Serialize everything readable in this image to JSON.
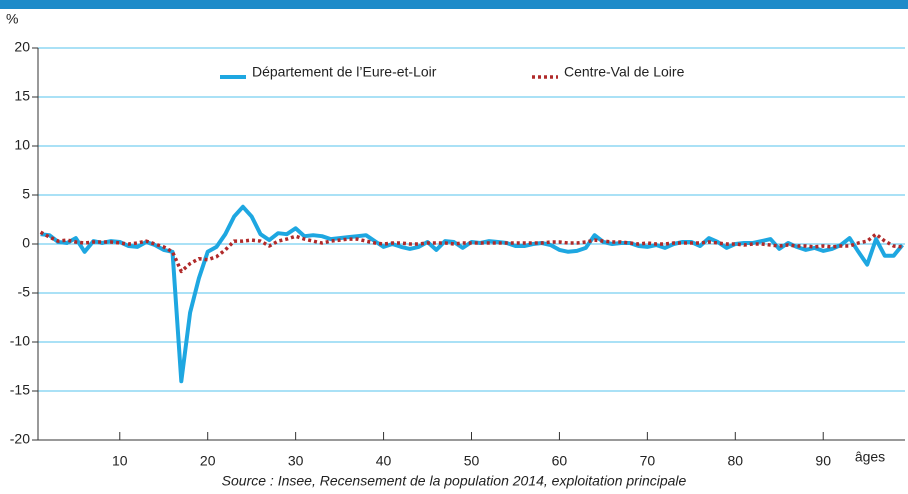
{
  "chart_data": {
    "type": "line",
    "y_unit": "%",
    "x_label": "âges",
    "source": "Source : Insee, Recensement de la population 2014, exploitation principale",
    "x": [
      1,
      2,
      3,
      4,
      5,
      6,
      7,
      8,
      9,
      10,
      11,
      12,
      13,
      14,
      15,
      16,
      17,
      18,
      19,
      20,
      21,
      22,
      23,
      24,
      25,
      26,
      27,
      28,
      29,
      30,
      31,
      32,
      33,
      34,
      35,
      36,
      37,
      38,
      39,
      40,
      41,
      42,
      43,
      44,
      45,
      46,
      47,
      48,
      49,
      50,
      51,
      52,
      53,
      54,
      55,
      56,
      57,
      58,
      59,
      60,
      61,
      62,
      63,
      64,
      65,
      66,
      67,
      68,
      69,
      70,
      71,
      72,
      73,
      74,
      75,
      76,
      77,
      78,
      79,
      80,
      81,
      82,
      83,
      84,
      85,
      86,
      87,
      88,
      89,
      90,
      91,
      92,
      93,
      94,
      95,
      96,
      97,
      98,
      99
    ],
    "series": [
      {
        "name": "Département de l’Eure-et-Loir",
        "color": "#1ea7e1",
        "style": "solid",
        "values": [
          1.0,
          0.9,
          0.2,
          0.1,
          0.6,
          -0.8,
          0.3,
          0.1,
          0.3,
          0.2,
          -0.2,
          -0.3,
          0.2,
          -0.1,
          -0.6,
          -0.8,
          -14.0,
          -7.0,
          -3.5,
          -0.8,
          -0.3,
          1.0,
          2.8,
          3.8,
          2.8,
          1.0,
          0.4,
          1.1,
          1.0,
          1.6,
          0.8,
          0.9,
          0.8,
          0.5,
          0.6,
          0.7,
          0.8,
          0.9,
          0.3,
          -0.3,
          0.0,
          -0.3,
          -0.5,
          -0.3,
          0.2,
          -0.6,
          0.3,
          0.2,
          -0.4,
          0.2,
          0.1,
          0.3,
          0.2,
          0.1,
          -0.2,
          -0.2,
          0.0,
          0.1,
          -0.1,
          -0.6,
          -0.8,
          -0.7,
          -0.4,
          0.9,
          0.2,
          0.0,
          0.1,
          0.1,
          -0.2,
          -0.3,
          -0.1,
          -0.4,
          0.0,
          0.2,
          0.2,
          -0.2,
          0.6,
          0.2,
          -0.4,
          0.0,
          0.1,
          0.1,
          0.3,
          0.5,
          -0.5,
          0.1,
          -0.3,
          -0.6,
          -0.4,
          -0.7,
          -0.5,
          -0.1,
          0.6,
          -0.8,
          -2.1,
          0.5,
          -1.2,
          -1.2,
          -0.1
        ]
      },
      {
        "name": "Centre-Val de Loire",
        "color": "#b02a2a",
        "style": "dotted",
        "values": [
          1.2,
          0.7,
          0.3,
          0.4,
          0.2,
          0.1,
          0.2,
          0.2,
          0.2,
          0.1,
          0.0,
          0.1,
          0.3,
          0.0,
          -0.3,
          -0.8,
          -2.8,
          -2.0,
          -1.5,
          -1.6,
          -1.3,
          -0.6,
          0.3,
          0.3,
          0.4,
          0.3,
          -0.2,
          0.3,
          0.5,
          0.8,
          0.5,
          0.3,
          0.1,
          0.3,
          0.4,
          0.5,
          0.5,
          0.3,
          0.1,
          0.0,
          0.1,
          0.1,
          0.0,
          0.0,
          0.1,
          0.1,
          0.1,
          0.0,
          0.1,
          0.1,
          0.1,
          0.1,
          0.1,
          0.1,
          0.1,
          0.1,
          0.1,
          0.1,
          0.2,
          0.2,
          0.1,
          0.1,
          0.2,
          0.4,
          0.3,
          0.2,
          0.2,
          0.1,
          0.0,
          0.1,
          0.0,
          0.0,
          0.1,
          0.1,
          0.1,
          0.1,
          0.2,
          0.1,
          0.0,
          0.0,
          -0.1,
          0.0,
          0.0,
          -0.1,
          -0.2,
          -0.1,
          -0.2,
          -0.2,
          -0.3,
          -0.2,
          -0.3,
          -0.2,
          -0.2,
          0.1,
          0.3,
          1.0,
          0.3,
          -0.2,
          -0.3
        ]
      }
    ],
    "xlim": [
      0.7,
      99.3
    ],
    "xticks": [
      10,
      20,
      30,
      40,
      50,
      60,
      70,
      80,
      90
    ],
    "ylim": [
      -20,
      20
    ],
    "yticks": [
      -20,
      -15,
      -10,
      -5,
      0,
      5,
      10,
      15,
      20
    ],
    "grid": true
  }
}
